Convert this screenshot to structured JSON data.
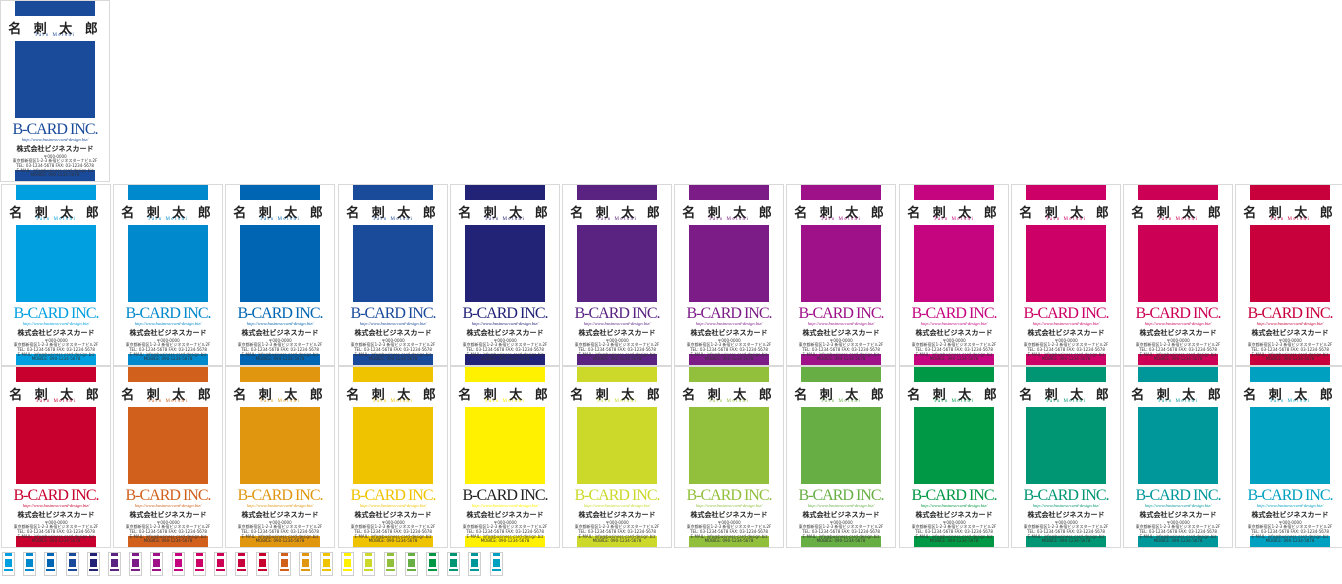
{
  "card_text": {
    "name": "名 刺 太 郎",
    "romaji": "Taro Meishi",
    "company": "B-CARD INC.",
    "url": "http://www.business-card-design.biz/",
    "company_jp": "株式会社ビジネスカード",
    "info_lines": [
      "〒000-0000",
      "東京都新宿区1-2-3 新宿ビジネスターナビル2F",
      "TEL: 03-1234-5678 FAX: 03-1234-5678",
      "E-MAIL: info@business-card-design.biz",
      "MOBILE: 090-1234-5678"
    ]
  },
  "featured_color": "#1a4a9a",
  "row1_colors": [
    "#00a0e0",
    "#0089cc",
    "#0066b3",
    "#1a4a9a",
    "#222277",
    "#5a2382",
    "#7c1d87",
    "#9e1188",
    "#c5057f",
    "#cc0066",
    "#cc0055",
    "#c8003c"
  ],
  "row2_colors": [
    "#c8002e",
    "#d0601b",
    "#e0960f",
    "#efc300",
    "#fff100",
    "#ccd92a",
    "#92c03c",
    "#67af45",
    "#009844",
    "#009673",
    "#00979a",
    "#00a0c0"
  ],
  "row2_company_text_colors": [
    "#c8002e",
    "#d0601b",
    "#e0960f",
    "#efc300",
    "#222222",
    "#ccd92a",
    "#92c03c",
    "#67af45",
    "#009844",
    "#009673",
    "#00979a",
    "#00a0c0"
  ],
  "thumbnail_colors": [
    "#00a0e0",
    "#0089cc",
    "#0066b3",
    "#1a4a9a",
    "#222277",
    "#5a2382",
    "#7c1d87",
    "#9e1188",
    "#c5057f",
    "#cc0066",
    "#cc0055",
    "#c8003c",
    "#c8002e",
    "#d0601b",
    "#e0960f",
    "#efc300",
    "#fff100",
    "#ccd92a",
    "#92c03c",
    "#67af45",
    "#009844",
    "#009673",
    "#00979a",
    "#00a0c0"
  ]
}
